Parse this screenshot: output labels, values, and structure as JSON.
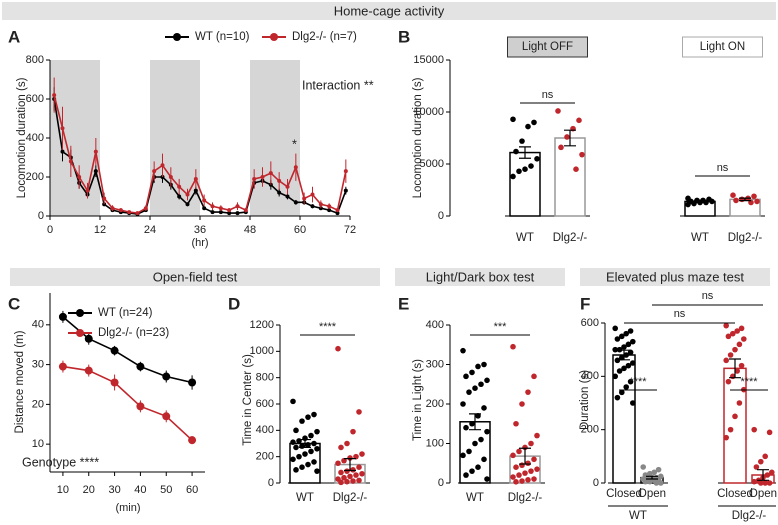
{
  "chart_data": [
    {
      "type": "line",
      "panel": "A",
      "section": "Home-cage activity",
      "x_label": "(hr)",
      "y_label": "Locomotion duration (s)",
      "x": [
        1,
        3,
        5,
        7,
        9,
        11,
        13,
        15,
        17,
        19,
        21,
        23,
        25,
        27,
        29,
        31,
        33,
        35,
        37,
        39,
        41,
        43,
        45,
        47,
        49,
        51,
        53,
        55,
        57,
        59,
        61,
        63,
        65,
        67,
        69,
        71
      ],
      "series": [
        {
          "name": "WT (n=10)",
          "color": "#000000",
          "values": [
            600,
            330,
            300,
            170,
            110,
            230,
            60,
            30,
            20,
            15,
            10,
            30,
            200,
            200,
            160,
            100,
            60,
            130,
            40,
            20,
            20,
            15,
            15,
            20,
            170,
            180,
            160,
            120,
            100,
            70,
            70,
            50,
            40,
            30,
            15,
            130
          ],
          "errors": [
            60,
            50,
            40,
            30,
            20,
            30,
            10,
            8,
            5,
            5,
            4,
            8,
            30,
            30,
            25,
            15,
            10,
            20,
            8,
            5,
            5,
            4,
            4,
            5,
            25,
            25,
            25,
            20,
            15,
            12,
            12,
            10,
            8,
            6,
            4,
            20
          ]
        },
        {
          "name": "Dlg2-/- (n=7)",
          "color": "#c0272d",
          "values": [
            620,
            450,
            280,
            200,
            130,
            330,
            90,
            40,
            30,
            20,
            15,
            40,
            230,
            260,
            200,
            150,
            110,
            190,
            80,
            50,
            40,
            30,
            50,
            30,
            190,
            200,
            220,
            180,
            150,
            250,
            90,
            110,
            60,
            50,
            30,
            230
          ],
          "errors": [
            90,
            110,
            80,
            60,
            40,
            70,
            30,
            15,
            10,
            8,
            6,
            15,
            50,
            60,
            50,
            40,
            30,
            50,
            30,
            20,
            15,
            10,
            20,
            12,
            50,
            50,
            60,
            45,
            40,
            70,
            30,
            40,
            20,
            15,
            10,
            60
          ]
        }
      ],
      "shaded": [
        [
          0,
          12
        ],
        [
          24,
          36
        ],
        [
          48,
          60
        ]
      ],
      "xlim": [
        0,
        72
      ],
      "xticks": [
        0,
        12,
        24,
        36,
        48,
        60,
        72
      ],
      "ylim": [
        0,
        800
      ],
      "yticks": [
        0,
        200,
        400,
        600,
        800
      ],
      "annotations": [
        "Interaction **",
        "*"
      ]
    },
    {
      "type": "dotbar",
      "panel": "B",
      "y_label": "Locomotion duration (s)",
      "ylim": [
        0,
        15000
      ],
      "yticks": [
        0,
        5000,
        10000,
        15000
      ],
      "groups": [
        {
          "title": "Light OFF",
          "categories": [
            "WT",
            "Dlg2-/-"
          ],
          "values": [
            6100,
            7500
          ],
          "errors": [
            550,
            750
          ],
          "colors": [
            "#000000",
            "#c0272d"
          ],
          "bar_colors": [
            "#000000",
            "#999999"
          ],
          "significance": "ns",
          "points": [
            [
              9300,
              9000,
              8600,
              7200,
              6200,
              5500,
              4800,
              4500,
              4300,
              3800
            ],
            [
              10100,
              9200,
              8400,
              7600,
              6600,
              5900,
              4500
            ]
          ]
        },
        {
          "title": "Light ON",
          "categories": [
            "WT",
            "Dlg2-/-"
          ],
          "values": [
            1400,
            1600
          ],
          "errors": [
            70,
            120
          ],
          "colors": [
            "#000000",
            "#c0272d"
          ],
          "bar_colors": [
            "#000000",
            "#999999"
          ],
          "significance": "ns",
          "points": [
            [
              1700,
              1600,
              1500,
              1500,
              1400,
              1400,
              1300,
              1300,
              1200,
              1100
            ],
            [
              2000,
              1900,
              1700,
              1600,
              1500,
              1400,
              1300
            ]
          ]
        }
      ]
    },
    {
      "type": "line",
      "panel": "C",
      "section": "Open-field test",
      "x_label": "(min)",
      "y_label": "Distance moved (m)",
      "x": [
        10,
        20,
        30,
        40,
        50,
        60
      ],
      "series": [
        {
          "name": "WT (n=24)",
          "color": "#000000",
          "values": [
            42,
            36.5,
            33.5,
            29.5,
            27,
            25.5
          ],
          "errors": [
            1.5,
            1.5,
            1.2,
            1.2,
            1.5,
            1.8
          ]
        },
        {
          "name": "Dlg2-/- (n=23)",
          "color": "#c0272d",
          "values": [
            29.5,
            28.5,
            25.5,
            19.5,
            17,
            11
          ],
          "errors": [
            1.5,
            1.5,
            2,
            1.5,
            1.5,
            1
          ]
        }
      ],
      "xlim": [
        5,
        65
      ],
      "xticks": [
        10,
        20,
        30,
        40,
        50,
        60
      ],
      "ylim": [
        3,
        48
      ],
      "yticks": [
        10,
        20,
        30,
        40
      ],
      "annotations": [
        "Genotype ****"
      ]
    },
    {
      "type": "dotbar",
      "panel": "D",
      "y_label": "Time in Center (s)",
      "ylim": [
        0,
        1200
      ],
      "yticks": [
        0,
        200,
        400,
        600,
        800,
        1000,
        1200
      ],
      "groups": [
        {
          "categories": [
            "WT",
            "Dlg2-/-"
          ],
          "values": [
            300,
            140
          ],
          "errors": [
            30,
            45
          ],
          "colors": [
            "#000000",
            "#c0272d"
          ],
          "bar_colors": [
            "#000000",
            "#999999"
          ],
          "significance": "****",
          "points": [
            [
              620,
              520,
              500,
              470,
              400,
              390,
              360,
              340,
              320,
              310,
              300,
              290,
              280,
              270,
              260,
              240,
              220,
              200,
              180,
              160,
              140,
              120,
              100,
              90
            ],
            [
              1020,
              540,
              390,
              300,
              270,
              220,
              200,
              190,
              170,
              150,
              120,
              100,
              90,
              80,
              70,
              60,
              50,
              40,
              30,
              20,
              15,
              10,
              5
            ]
          ]
        }
      ]
    },
    {
      "type": "dotbar",
      "panel": "E",
      "section": "Light/Dark box test",
      "y_label": "Time in Light (s)",
      "ylim": [
        0,
        400
      ],
      "yticks": [
        0,
        100,
        200,
        300,
        400
      ],
      "groups": [
        {
          "categories": [
            "WT",
            "Dlg2-/-"
          ],
          "values": [
            155,
            68
          ],
          "errors": [
            20,
            20
          ],
          "colors": [
            "#000000",
            "#c0272d"
          ],
          "bar_colors": [
            "#000000",
            "#999999"
          ],
          "significance": "***",
          "points": [
            [
              335,
              300,
              295,
              280,
              270,
              260,
              250,
              240,
              230,
              200,
              190,
              170,
              150,
              140,
              130,
              110,
              100,
              80,
              70,
              60,
              40,
              30,
              20,
              10
            ],
            [
              345,
              270,
              230,
              200,
              150,
              120,
              100,
              90,
              80,
              70,
              60,
              50,
              45,
              40,
              35,
              30,
              25,
              20,
              15,
              10,
              8,
              5,
              3
            ]
          ]
        }
      ]
    },
    {
      "type": "dotbar",
      "panel": "F",
      "section": "Elevated plus maze test",
      "y_label": "Duration (s)",
      "ylim": [
        0,
        600
      ],
      "yticks": [
        0,
        200,
        400,
        600
      ],
      "groups": [
        {
          "label": "WT",
          "categories": [
            "Closed",
            "Open"
          ],
          "values": [
            480,
            20
          ],
          "errors": [
            18,
            5
          ],
          "colors": [
            "#000000",
            "#888888"
          ],
          "bar_colors": [
            "#000000",
            "#000000"
          ],
          "significance": "****",
          "points": [
            [
              580,
              570,
              560,
              550,
              540,
              530,
              520,
              510,
              500,
              500,
              490,
              480,
              470,
              460,
              450,
              440,
              430,
              420,
              400,
              380,
              360,
              340,
              320,
              300
            ],
            [
              60,
              50,
              40,
              35,
              30,
              25,
              20,
              20,
              15,
              15,
              10,
              10,
              5,
              5,
              0,
              0
            ]
          ]
        },
        {
          "label": "Dlg2-/-",
          "categories": [
            "Closed",
            "Open"
          ],
          "values": [
            430,
            30
          ],
          "errors": [
            35,
            20
          ],
          "colors": [
            "#c0272d",
            "#c0272d"
          ],
          "bar_colors": [
            "#c0272d",
            "#c0272d"
          ],
          "significance": "****",
          "points": [
            [
              590,
              580,
              570,
              560,
              550,
              540,
              520,
              500,
              480,
              460,
              440,
              420,
              400,
              380,
              350,
              300,
              250,
              200,
              170
            ],
            [
              200,
              190,
              100,
              80,
              60,
              40,
              30,
              20,
              10,
              5,
              0,
              0,
              0
            ]
          ]
        }
      ],
      "comparisons": [
        "ns",
        "ns"
      ]
    }
  ]
}
